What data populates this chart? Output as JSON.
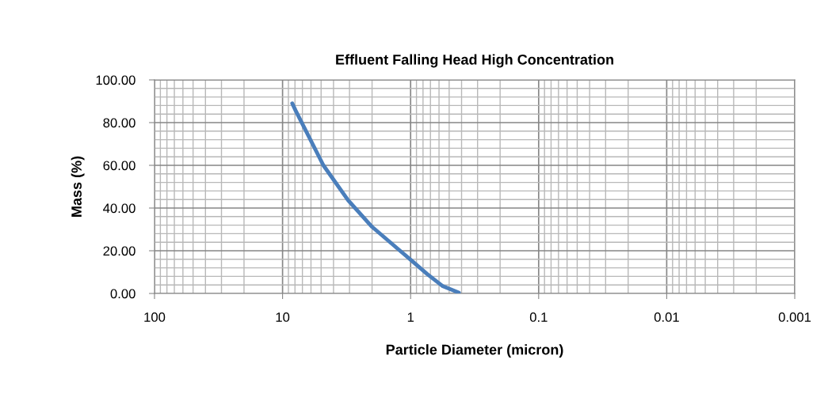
{
  "chart_data": {
    "type": "line",
    "title": "Effluent Falling Head High Concentration",
    "xlabel": "Particle Diameter (micron)",
    "ylabel": "Mass (%)",
    "log": "x",
    "xlim": [
      100,
      0.001
    ],
    "ylim": [
      0,
      100
    ],
    "xticks": [
      100,
      10,
      1,
      {
        "value": 0.1,
        "label": "0.1"
      },
      {
        "value": 0.01,
        "label": "0.01"
      },
      {
        "value": 0.001,
        "label": "0.001"
      }
    ],
    "yticks": [
      {
        "value": 0,
        "label": "0.00"
      },
      {
        "value": 20,
        "label": "20.00"
      },
      {
        "value": 40,
        "label": "40.00"
      },
      {
        "value": 60,
        "label": "60.00"
      },
      {
        "value": 80,
        "label": "80.00"
      },
      {
        "value": 100,
        "label": "100.00"
      }
    ],
    "grid": true,
    "marker": "none",
    "line_style": "solid",
    "series": [
      {
        "color": "#4a7ebb",
        "x": [
          8.4,
          7.9,
          4.8,
          3.07,
          2.0,
          1.0,
          0.74,
          0.56,
          0.42
        ],
        "values": [
          89,
          85.6,
          60,
          43.6,
          31.2,
          15.8,
          9,
          3.4,
          0.4
        ]
      }
    ]
  }
}
